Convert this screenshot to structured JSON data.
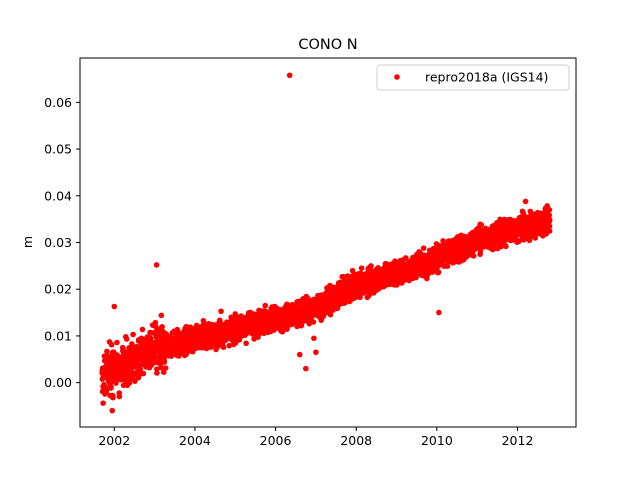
{
  "chart_data": {
    "type": "scatter",
    "title": "CONO N",
    "xlabel": "",
    "ylabel": "m",
    "xlim": [
      2001.15,
      2013.45
    ],
    "ylim": [
      -0.0095,
      0.0695
    ],
    "x_ticks": [
      2002,
      2004,
      2006,
      2008,
      2010,
      2012
    ],
    "x_tick_labels": [
      "2002",
      "2004",
      "2006",
      "2008",
      "2010",
      "2012"
    ],
    "y_ticks": [
      0.0,
      0.01,
      0.02,
      0.03,
      0.04,
      0.05,
      0.06
    ],
    "y_tick_labels": [
      "0.00",
      "0.01",
      "0.02",
      "0.03",
      "0.04",
      "0.05",
      "0.06"
    ],
    "grid": false,
    "legend_position": "top-right",
    "series": [
      {
        "name": "repro2018a (IGS14)",
        "color": "#ff0000",
        "marker": "circle",
        "trend": {
          "x": [
            2001.7,
            2002.0,
            2003.0,
            2004.0,
            2005.0,
            2006.0,
            2007.0,
            2008.0,
            2009.0,
            2010.0,
            2011.0,
            2012.0,
            2012.8
          ],
          "y": [
            0.0005,
            0.003,
            0.007,
            0.0095,
            0.0115,
            0.0135,
            0.016,
            0.021,
            0.0235,
            0.0265,
            0.0305,
            0.033,
            0.0345
          ]
        },
        "noise_sd": 0.0018,
        "outliers": [
          {
            "x": 2006.35,
            "y": 0.0658
          },
          {
            "x": 2003.05,
            "y": 0.0252
          },
          {
            "x": 2010.05,
            "y": 0.015
          },
          {
            "x": 2001.95,
            "y": -0.006
          },
          {
            "x": 2006.75,
            "y": 0.003
          },
          {
            "x": 2006.6,
            "y": 0.006
          },
          {
            "x": 2006.95,
            "y": 0.0095
          },
          {
            "x": 2007.0,
            "y": 0.0065
          },
          {
            "x": 2002.0,
            "y": 0.0163
          },
          {
            "x": 2012.2,
            "y": 0.0388
          }
        ]
      }
    ]
  }
}
